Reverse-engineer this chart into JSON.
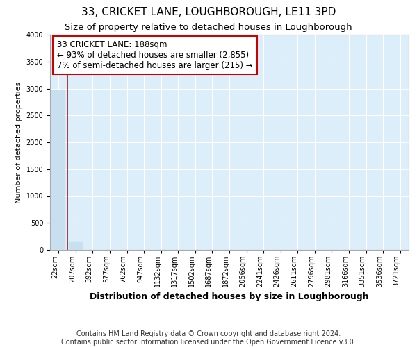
{
  "title": "33, CRICKET LANE, LOUGHBOROUGH, LE11 3PD",
  "subtitle": "Size of property relative to detached houses in Loughborough",
  "xlabel": "Distribution of detached houses by size in Loughborough",
  "ylabel": "Number of detached properties",
  "bin_labels": [
    "22sqm",
    "207sqm",
    "392sqm",
    "577sqm",
    "762sqm",
    "947sqm",
    "1132sqm",
    "1317sqm",
    "1502sqm",
    "1687sqm",
    "1872sqm",
    "2056sqm",
    "2241sqm",
    "2426sqm",
    "2611sqm",
    "2796sqm",
    "2981sqm",
    "3166sqm",
    "3351sqm",
    "3536sqm",
    "3721sqm"
  ],
  "bar_heights": [
    2975,
    150,
    0,
    0,
    0,
    0,
    0,
    0,
    0,
    0,
    0,
    0,
    0,
    0,
    0,
    0,
    0,
    0,
    0,
    0,
    0
  ],
  "bar_color": "#c8dff0",
  "marker_color": "#9b1c1c",
  "ylim": [
    0,
    4000
  ],
  "yticks": [
    0,
    500,
    1000,
    1500,
    2000,
    2500,
    3000,
    3500,
    4000
  ],
  "annotation_line1": "33 CRICKET LANE: 188sqm",
  "annotation_line2": "← 93% of detached houses are smaller (2,855)",
  "annotation_line3": "7% of semi-detached houses are larger (215) →",
  "annotation_box_color": "#ffffff",
  "annotation_border_color": "#cc0000",
  "footnote": "Contains HM Land Registry data © Crown copyright and database right 2024.\nContains public sector information licensed under the Open Government Licence v3.0.",
  "plot_bg_color": "#dceefa",
  "grid_color": "#ffffff",
  "title_fontsize": 11,
  "subtitle_fontsize": 9.5,
  "xlabel_fontsize": 9,
  "ylabel_fontsize": 8,
  "tick_fontsize": 7,
  "annotation_fontsize": 8.5,
  "footnote_fontsize": 7
}
